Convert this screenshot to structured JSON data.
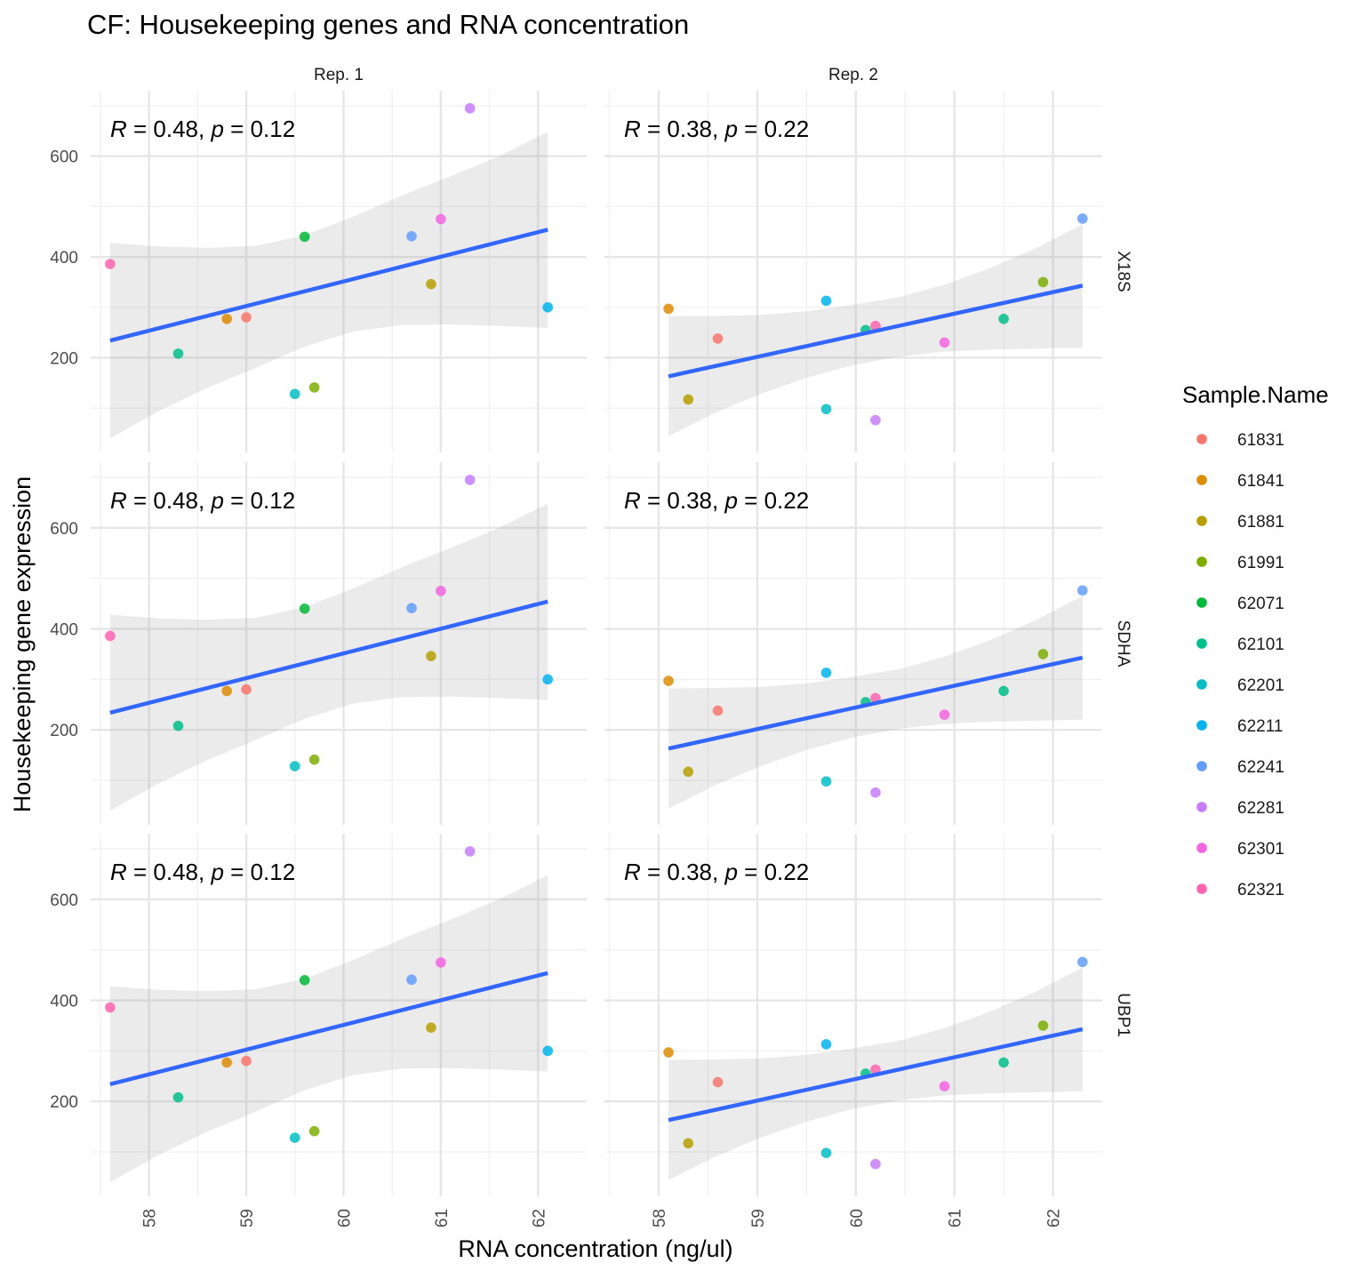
{
  "chart_data": {
    "type": "scatter",
    "title": "CF: Housekeeping genes and RNA concentration",
    "xlabel": "RNA concentration (ng/ul)",
    "ylabel": "Housekeeping gene expression",
    "legend": {
      "title": "Sample.Name",
      "position": "right",
      "items": [
        {
          "name": "61831",
          "color": "#F8766D"
        },
        {
          "name": "61841",
          "color": "#DE8C00"
        },
        {
          "name": "61881",
          "color": "#B79F00"
        },
        {
          "name": "61991",
          "color": "#7CAE00"
        },
        {
          "name": "62071",
          "color": "#00BA38"
        },
        {
          "name": "62101",
          "color": "#00C08B"
        },
        {
          "name": "62201",
          "color": "#00BFC4"
        },
        {
          "name": "62211",
          "color": "#00B4F0"
        },
        {
          "name": "62241",
          "color": "#619CFF"
        },
        {
          "name": "62281",
          "color": "#C77CFF"
        },
        {
          "name": "62301",
          "color": "#F564E3"
        },
        {
          "name": "62321",
          "color": "#FF64B0"
        }
      ]
    },
    "columns": [
      {
        "label": "Rep. 1",
        "xlim": [
          57.4,
          62.5
        ],
        "xticks": [
          58,
          59,
          60,
          61,
          62
        ],
        "annotation": {
          "r": "0.48",
          "p": "0.12"
        },
        "fit": {
          "x": [
            57.6,
            62.1
          ],
          "y": [
            234,
            454
          ]
        },
        "ci_upper": [
          428,
          421,
          418,
          422,
          443,
          480,
          522,
          560,
          600,
          648
        ],
        "ci_lower": [
          40,
          94,
          140,
          180,
          222,
          252,
          265,
          266,
          263,
          259
        ],
        "points": [
          {
            "sample": "62321",
            "x": 57.6,
            "y": 386
          },
          {
            "sample": "62101",
            "x": 58.3,
            "y": 208
          },
          {
            "sample": "61841",
            "x": 58.8,
            "y": 277
          },
          {
            "sample": "61831",
            "x": 59.0,
            "y": 280
          },
          {
            "sample": "62201",
            "x": 59.5,
            "y": 128
          },
          {
            "sample": "62071",
            "x": 59.6,
            "y": 440
          },
          {
            "sample": "61991",
            "x": 59.7,
            "y": 141
          },
          {
            "sample": "62241",
            "x": 60.7,
            "y": 441
          },
          {
            "sample": "61881",
            "x": 60.9,
            "y": 346
          },
          {
            "sample": "62301",
            "x": 61.0,
            "y": 475
          },
          {
            "sample": "62281",
            "x": 61.3,
            "y": 695
          },
          {
            "sample": "62211",
            "x": 62.1,
            "y": 300
          }
        ]
      },
      {
        "label": "Rep. 2",
        "xlim": [
          57.45,
          62.5
        ],
        "xticks": [
          58,
          59,
          60,
          61,
          62
        ],
        "annotation": {
          "r": "0.38",
          "p": "0.22"
        },
        "fit": {
          "x": [
            58.1,
            62.3
          ],
          "y": [
            163,
            343
          ]
        },
        "ci_upper": [
          282,
          283,
          285,
          292,
          305,
          320,
          345,
          378,
          418,
          465
        ],
        "ci_lower": [
          44,
          90,
          128,
          160,
          185,
          202,
          212,
          216,
          218,
          220
        ],
        "points": [
          {
            "sample": "61841",
            "x": 58.1,
            "y": 297
          },
          {
            "sample": "61881",
            "x": 58.3,
            "y": 117
          },
          {
            "sample": "61831",
            "x": 58.6,
            "y": 238
          },
          {
            "sample": "62211",
            "x": 59.7,
            "y": 313
          },
          {
            "sample": "62201",
            "x": 59.7,
            "y": 98
          },
          {
            "sample": "62101",
            "x": 60.1,
            "y": 255
          },
          {
            "sample": "62321",
            "x": 60.2,
            "y": 263
          },
          {
            "sample": "62281",
            "x": 60.2,
            "y": 76
          },
          {
            "sample": "62301",
            "x": 60.9,
            "y": 230
          },
          {
            "sample": "62101",
            "x": 61.5,
            "y": 277
          },
          {
            "sample": "61991",
            "x": 61.9,
            "y": 350
          },
          {
            "sample": "62241",
            "x": 62.3,
            "y": 476
          }
        ]
      }
    ],
    "rows": [
      {
        "label": "X18S"
      },
      {
        "label": "SDHA"
      },
      {
        "label": "UBP1"
      }
    ],
    "ylim": [
      12,
      730
    ],
    "yticks": [
      200,
      400,
      600
    ],
    "grid": true
  }
}
